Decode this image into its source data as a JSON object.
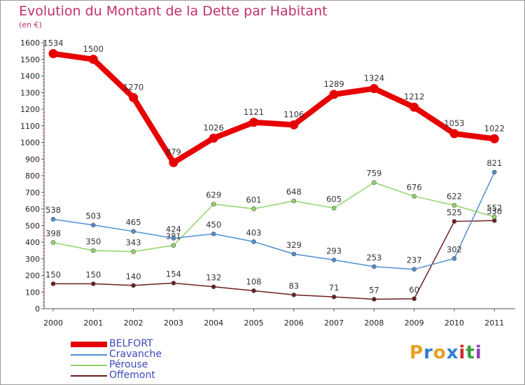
{
  "header": {
    "title": "Evolution du Montant de la Dette par Habitant",
    "unit": "(en €)"
  },
  "logo": {
    "letters": [
      "P",
      "r",
      "o",
      "x",
      "i",
      "t",
      "i"
    ],
    "colors": [
      "#e8a020",
      "#2f7fd0",
      "#e8a020",
      "#2f7fd0",
      "#d62828",
      "#3aa03a",
      "#8e44ad"
    ]
  },
  "chart_data": {
    "type": "line",
    "title": "Evolution du Montant de la Dette par Habitant",
    "ylabel": "(en €)",
    "xlabel": "",
    "x": [
      "2000",
      "2001",
      "2002",
      "2003",
      "2004",
      "2005",
      "2006",
      "2007",
      "2008",
      "2009",
      "2010",
      "2011"
    ],
    "ylim": [
      0,
      1600
    ],
    "yticks": [
      0,
      100,
      200,
      300,
      400,
      500,
      600,
      700,
      800,
      900,
      1000,
      1100,
      1200,
      1300,
      1400,
      1500,
      1600
    ],
    "grid": false,
    "legend_position": "bottom-left",
    "series": [
      {
        "name": "BELFORT",
        "color": "#e60000",
        "values": [
          1534,
          1500,
          1270,
          879,
          1026,
          1121,
          1106,
          1289,
          1324,
          1212,
          1053,
          1022
        ]
      },
      {
        "name": "Cravanche",
        "color": "#4f8fd0",
        "values": [
          538,
          503,
          465,
          424,
          450,
          403,
          329,
          293,
          253,
          237,
          302,
          821
        ]
      },
      {
        "name": "Pérouse",
        "color": "#8fd66a",
        "values": [
          398,
          350,
          343,
          381,
          629,
          601,
          648,
          605,
          759,
          676,
          622,
          552
        ]
      },
      {
        "name": "Offemont",
        "color": "#6b1f1f",
        "values": [
          150,
          150,
          140,
          154,
          132,
          108,
          83,
          71,
          57,
          60,
          525,
          530
        ]
      }
    ]
  }
}
